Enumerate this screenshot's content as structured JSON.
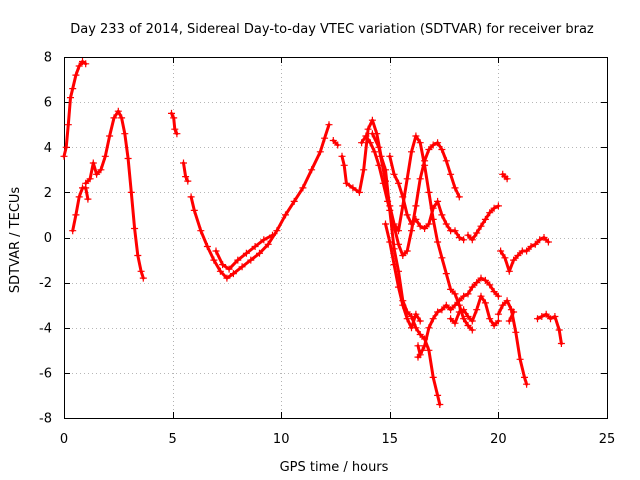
{
  "chart_data": {
    "type": "scatter",
    "title": "Day 233 of 2014, Sidereal Day-to-day VTEC variation (SDTVAR) for receiver braz",
    "xlabel": "GPS time / hours",
    "ylabel": "SDTVAR / TECUs",
    "xlim": [
      0,
      25
    ],
    "ylim": [
      -8,
      8
    ],
    "xticks": [
      0,
      5,
      10,
      15,
      20,
      25
    ],
    "yticks": [
      -8,
      -6,
      -4,
      -2,
      0,
      2,
      4,
      6,
      8
    ],
    "xtick_labels": [
      "0",
      "5",
      "10",
      "15",
      "20",
      "25"
    ],
    "ytick_labels": [
      "-8",
      "-6",
      "-4",
      "-2",
      "0",
      "2",
      "4",
      "6",
      "8"
    ],
    "grid": true,
    "legend": "none",
    "marker": "plus",
    "series": [
      {
        "name": "SDTVAR",
        "color": "#ff0000",
        "segments": [
          [
            [
              0.0,
              3.6
            ],
            [
              0.1,
              4.0
            ],
            [
              0.2,
              5.0
            ],
            [
              0.3,
              6.2
            ],
            [
              0.4,
              6.6
            ],
            [
              0.55,
              7.2
            ],
            [
              0.7,
              7.6
            ],
            [
              0.85,
              7.8
            ],
            [
              1.0,
              7.7
            ]
          ],
          [
            [
              0.4,
              0.3
            ],
            [
              0.55,
              1.0
            ],
            [
              0.7,
              1.8
            ],
            [
              0.85,
              2.2
            ],
            [
              1.0,
              2.2
            ],
            [
              1.1,
              1.7
            ]
          ],
          [
            [
              1.0,
              2.4
            ],
            [
              1.2,
              2.6
            ],
            [
              1.35,
              3.3
            ],
            [
              1.5,
              2.8
            ],
            [
              1.7,
              3.0
            ],
            [
              1.9,
              3.6
            ],
            [
              2.1,
              4.5
            ],
            [
              2.3,
              5.3
            ],
            [
              2.5,
              5.6
            ],
            [
              2.65,
              5.3
            ],
            [
              2.8,
              4.6
            ],
            [
              2.95,
              3.5
            ],
            [
              3.1,
              2.0
            ],
            [
              3.25,
              0.4
            ],
            [
              3.4,
              -0.8
            ],
            [
              3.55,
              -1.5
            ],
            [
              3.65,
              -1.8
            ]
          ],
          [
            [
              4.95,
              5.5
            ],
            [
              5.05,
              5.3
            ],
            [
              5.1,
              4.8
            ],
            [
              5.2,
              4.6
            ]
          ],
          [
            [
              5.5,
              3.3
            ],
            [
              5.6,
              2.7
            ],
            [
              5.7,
              2.5
            ]
          ],
          [
            [
              5.85,
              1.8
            ],
            [
              6.0,
              1.2
            ],
            [
              6.3,
              0.3
            ],
            [
              6.6,
              -0.4
            ],
            [
              6.9,
              -1.0
            ],
            [
              7.2,
              -1.5
            ],
            [
              7.5,
              -1.8
            ],
            [
              7.8,
              -1.6
            ],
            [
              8.2,
              -1.3
            ],
            [
              8.6,
              -1.0
            ],
            [
              9.0,
              -0.7
            ],
            [
              9.4,
              -0.3
            ],
            [
              9.8,
              0.3
            ],
            [
              10.2,
              1.0
            ],
            [
              10.6,
              1.6
            ],
            [
              11.0,
              2.2
            ],
            [
              11.4,
              3.0
            ],
            [
              11.8,
              3.8
            ],
            [
              12.0,
              4.4
            ],
            [
              12.2,
              5.0
            ]
          ],
          [
            [
              7.0,
              -0.6
            ],
            [
              7.3,
              -1.2
            ],
            [
              7.6,
              -1.4
            ],
            [
              8.0,
              -1.0
            ],
            [
              8.4,
              -0.7
            ],
            [
              8.8,
              -0.4
            ],
            [
              9.2,
              -0.1
            ],
            [
              9.6,
              0.1
            ]
          ],
          [
            [
              12.4,
              4.3
            ],
            [
              12.6,
              4.1
            ]
          ],
          [
            [
              12.8,
              3.6
            ],
            [
              12.9,
              3.2
            ],
            [
              13.0,
              2.4
            ],
            [
              13.3,
              2.2
            ],
            [
              13.6,
              2.0
            ],
            [
              13.8,
              3.0
            ],
            [
              14.0,
              4.8
            ],
            [
              14.2,
              5.2
            ],
            [
              14.4,
              4.6
            ],
            [
              14.6,
              3.6
            ],
            [
              14.8,
              3.0
            ],
            [
              15.0,
              1.2
            ],
            [
              15.2,
              -0.5
            ],
            [
              15.4,
              -1.5
            ],
            [
              15.6,
              -2.8
            ],
            [
              15.8,
              -3.3
            ],
            [
              16.0,
              -3.5
            ],
            [
              16.2,
              -4.0
            ],
            [
              16.4,
              -4.3
            ],
            [
              16.6,
              -4.5
            ],
            [
              16.8,
              -5.0
            ],
            [
              17.0,
              -6.2
            ],
            [
              17.2,
              -7.0
            ],
            [
              17.3,
              -7.4
            ]
          ],
          [
            [
              13.7,
              4.2
            ],
            [
              13.9,
              4.5
            ],
            [
              14.1,
              4.2
            ],
            [
              14.3,
              3.8
            ],
            [
              14.5,
              3.2
            ],
            [
              14.7,
              2.4
            ],
            [
              14.9,
              1.6
            ],
            [
              15.2,
              0.5
            ],
            [
              15.4,
              -0.3
            ],
            [
              15.6,
              -0.8
            ],
            [
              15.8,
              -0.6
            ],
            [
              16.0,
              0.3
            ],
            [
              16.2,
              1.4
            ],
            [
              16.4,
              2.6
            ],
            [
              16.6,
              3.4
            ],
            [
              16.8,
              3.9
            ],
            [
              17.0,
              4.1
            ],
            [
              17.2,
              4.2
            ],
            [
              17.4,
              3.9
            ],
            [
              17.6,
              3.4
            ],
            [
              17.8,
              2.8
            ],
            [
              18.0,
              2.2
            ],
            [
              18.2,
              1.8
            ]
          ],
          [
            [
              14.2,
              4.6
            ],
            [
              14.5,
              4.0
            ],
            [
              14.8,
              2.5
            ],
            [
              15.0,
              1.4
            ],
            [
              15.2,
              0.6
            ],
            [
              15.4,
              0.3
            ],
            [
              15.6,
              1.4
            ],
            [
              15.8,
              2.6
            ],
            [
              16.0,
              3.8
            ],
            [
              16.2,
              4.5
            ],
            [
              16.4,
              4.2
            ],
            [
              16.6,
              3.2
            ],
            [
              16.8,
              2.0
            ],
            [
              17.0,
              0.8
            ],
            [
              17.2,
              -0.2
            ],
            [
              17.4,
              -0.9
            ],
            [
              17.6,
              -1.6
            ],
            [
              17.8,
              -2.3
            ],
            [
              18.0,
              -2.5
            ],
            [
              18.2,
              -3.0
            ],
            [
              18.4,
              -3.6
            ],
            [
              18.6,
              -3.9
            ],
            [
              18.8,
              -4.1
            ]
          ],
          [
            [
              15.0,
              3.6
            ],
            [
              15.2,
              2.8
            ],
            [
              15.4,
              2.4
            ],
            [
              15.6,
              1.8
            ],
            [
              15.8,
              1.0
            ],
            [
              16.0,
              0.6
            ],
            [
              16.2,
              0.8
            ],
            [
              16.4,
              0.5
            ],
            [
              16.6,
              0.4
            ],
            [
              16.8,
              0.6
            ],
            [
              17.0,
              1.3
            ],
            [
              17.2,
              1.6
            ],
            [
              17.4,
              1.0
            ],
            [
              17.6,
              0.6
            ],
            [
              17.8,
              0.3
            ],
            [
              18.0,
              0.3
            ],
            [
              18.2,
              0.0
            ],
            [
              18.4,
              -0.1
            ]
          ],
          [
            [
              14.8,
              0.6
            ],
            [
              15.0,
              -0.2
            ],
            [
              15.2,
              -1.2
            ],
            [
              15.4,
              -2.2
            ],
            [
              15.6,
              -3.0
            ],
            [
              15.8,
              -3.6
            ],
            [
              16.0,
              -4.0
            ],
            [
              16.2,
              -3.4
            ],
            [
              16.4,
              -3.7
            ]
          ],
          [
            [
              16.3,
              -5.3
            ],
            [
              16.5,
              -5.0
            ],
            [
              16.6,
              -4.8
            ],
            [
              16.8,
              -4.0
            ],
            [
              17.0,
              -3.6
            ],
            [
              17.2,
              -3.3
            ],
            [
              17.4,
              -3.2
            ],
            [
              17.6,
              -3.0
            ],
            [
              17.8,
              -3.2
            ],
            [
              18.0,
              -3.0
            ],
            [
              18.2,
              -2.8
            ],
            [
              18.4,
              -2.6
            ],
            [
              18.6,
              -2.5
            ],
            [
              18.8,
              -2.2
            ],
            [
              19.0,
              -2.0
            ],
            [
              19.2,
              -1.8
            ],
            [
              19.4,
              -1.9
            ],
            [
              19.6,
              -2.1
            ],
            [
              19.8,
              -2.4
            ],
            [
              20.0,
              -2.6
            ]
          ],
          [
            [
              16.3,
              -4.8
            ],
            [
              16.4,
              -5.2
            ]
          ],
          [
            [
              17.8,
              -3.6
            ],
            [
              18.0,
              -3.8
            ],
            [
              18.2,
              -3.3
            ],
            [
              18.4,
              -3.2
            ],
            [
              18.6,
              -3.5
            ],
            [
              18.8,
              -3.7
            ],
            [
              19.0,
              -3.2
            ],
            [
              19.2,
              -2.6
            ],
            [
              19.4,
              -2.9
            ],
            [
              19.6,
              -3.6
            ],
            [
              19.8,
              -3.9
            ],
            [
              20.0,
              -3.7
            ]
          ],
          [
            [
              18.6,
              0.1
            ],
            [
              18.8,
              -0.1
            ],
            [
              19.0,
              0.2
            ],
            [
              19.2,
              0.5
            ],
            [
              19.4,
              0.8
            ],
            [
              19.6,
              1.1
            ],
            [
              19.8,
              1.3
            ],
            [
              20.0,
              1.4
            ]
          ],
          [
            [
              20.2,
              2.8
            ],
            [
              20.3,
              2.7
            ],
            [
              20.4,
              2.6
            ]
          ],
          [
            [
              20.1,
              -0.6
            ],
            [
              20.3,
              -0.9
            ],
            [
              20.5,
              -1.5
            ],
            [
              20.7,
              -1.0
            ],
            [
              20.9,
              -0.8
            ],
            [
              21.1,
              -0.6
            ],
            [
              21.3,
              -0.6
            ],
            [
              21.5,
              -0.4
            ],
            [
              21.7,
              -0.3
            ],
            [
              21.9,
              -0.1
            ],
            [
              22.1,
              0.0
            ],
            [
              22.3,
              -0.2
            ]
          ],
          [
            [
              20.0,
              -3.4
            ],
            [
              20.2,
              -3.0
            ],
            [
              20.4,
              -2.8
            ],
            [
              20.6,
              -3.2
            ],
            [
              20.8,
              -4.2
            ],
            [
              21.0,
              -5.4
            ],
            [
              21.2,
              -6.2
            ],
            [
              21.3,
              -6.5
            ]
          ],
          [
            [
              20.5,
              -3.7
            ],
            [
              20.7,
              -3.3
            ]
          ],
          [
            [
              21.8,
              -3.6
            ],
            [
              22.0,
              -3.5
            ],
            [
              22.2,
              -3.4
            ],
            [
              22.4,
              -3.6
            ],
            [
              22.6,
              -3.5
            ],
            [
              22.8,
              -4.1
            ],
            [
              22.9,
              -4.7
            ]
          ]
        ]
      }
    ]
  }
}
